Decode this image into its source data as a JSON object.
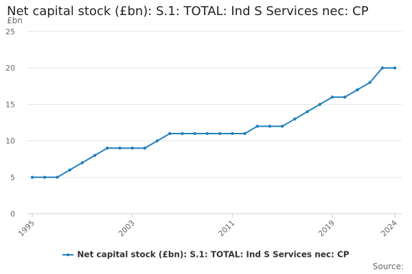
{
  "chart_data": {
    "type": "line",
    "title": "Net capital stock (£bn): S.1: TOTAL: Ind S Services nec: CP",
    "unit_label": "£bn",
    "x": [
      1995,
      1996,
      1997,
      1998,
      1999,
      2000,
      2001,
      2002,
      2003,
      2004,
      2005,
      2006,
      2007,
      2008,
      2009,
      2010,
      2011,
      2012,
      2013,
      2014,
      2015,
      2016,
      2017,
      2018,
      2019,
      2020,
      2021,
      2022,
      2023,
      2024
    ],
    "series": [
      {
        "name": "Net capital stock (£bn): S.1: TOTAL: Ind S Services nec: CP",
        "values": [
          5,
          5,
          5,
          6,
          7,
          8,
          9,
          9,
          9,
          9,
          10,
          11,
          11,
          11,
          11,
          11,
          11,
          11,
          12,
          12,
          12,
          13,
          14,
          15,
          16,
          16,
          17,
          18,
          20,
          20
        ]
      }
    ],
    "x_tick_labels": [
      "1995",
      "2003",
      "2011",
      "2019",
      "2024"
    ],
    "y_tick_labels": [
      "0",
      "5",
      "10",
      "15",
      "20",
      "25"
    ],
    "ylim": [
      0,
      25
    ],
    "grid": true,
    "legend_position": "bottom",
    "source_label": "Source:",
    "color": "#1f7fbc"
  }
}
